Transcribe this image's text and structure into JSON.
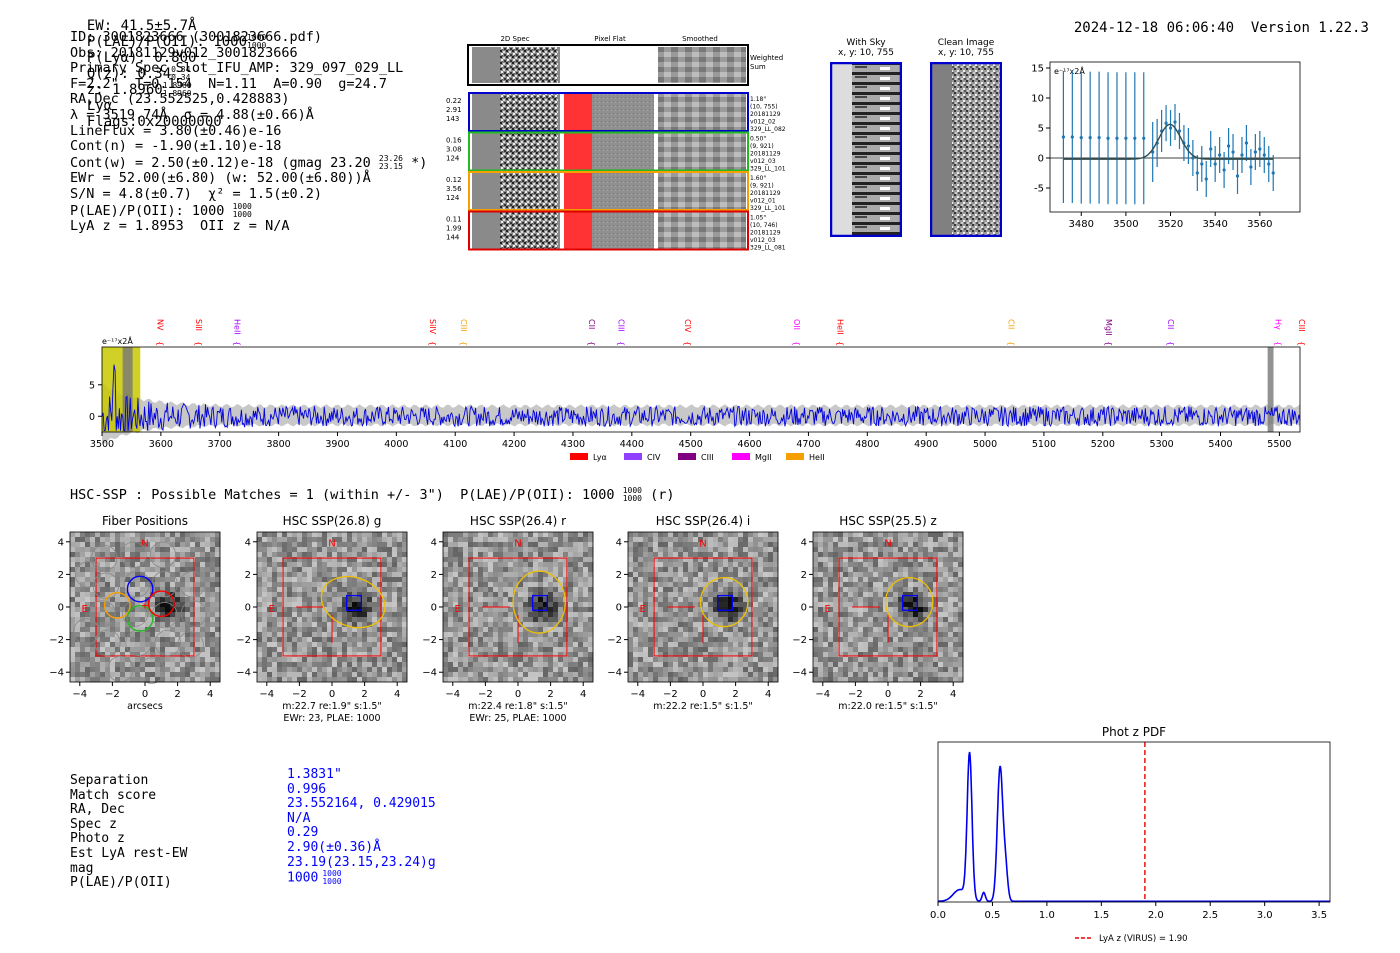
{
  "header": {
    "ew": "EW: 41.5±5.7Å",
    "plae": "P(LAE)/P(OII): 1000",
    "plae_sup": "1000",
    "plae_sub": "1000",
    "plya": "P(Lyα): 0.800",
    "qz": "Q(z): 0.34",
    "qz_sup": "0.34",
    "qz_sub": "0.34",
    "z": "z: 1.8960",
    "z_sup": "1.8960",
    "z_sub": "1.8960",
    "z_line": "Lyα",
    "flags": "Flags:0x20000000",
    "datetime": "2024-12-18 06:06:40",
    "version": "Version 1.22.3"
  },
  "info": {
    "id": "ID: 3001823666 (3001823666.pdf)",
    "obs": "Obs: 20181129v012_3001823666",
    "primary": "Primary Spec_Slot_IFU_AMP: 329_097_029_LL",
    "fiber": "F=2.2\"  T=0.154  N=1.11  A=0.90  g=24.7",
    "radec": "RA,Dec (23.552525,0.428883)",
    "lambda": "λ = 3519.74Å  σ = 4.88(±0.66)Å",
    "lineflux": "LineFlux = 3.80(±0.46)e-16",
    "contn": "Cont(n) = -1.90(±1.10)e-18",
    "contw": "Cont(w) = 2.50(±0.12)e-18 (gmag 23.20",
    "contw_sup": "23.26",
    "contw_sub": "23.15",
    "contw_end": "*)",
    "ewr": "EWr = 52.00(±6.80) (w: 52.00(±6.80))Å",
    "sn": "S/N = 4.8(±0.7)  χ² = 1.5(±0.2)",
    "plae": "P(LAE)/P(OII): 1000",
    "plae_sup": "1000",
    "plae_sub": "1000",
    "lyaz": "LyA z = 1.8953  OII z = N/A"
  },
  "cutouts": {
    "col_headers": [
      "2D Spec",
      "Pixel Flat",
      "Smoothed"
    ],
    "weighted_sum": "Weighted Sum",
    "rows": [
      {
        "vals": [
          "0.22",
          "2.91",
          "143"
        ],
        "meta": [
          "1.18\"",
          "(10, 755)",
          "20181129",
          "v012_02",
          "329_LL_082"
        ],
        "color": "#0000cc"
      },
      {
        "vals": [
          "0.16",
          "3.08",
          "124"
        ],
        "meta": [
          "0.50\"",
          "(9, 921)",
          "20181129",
          "v012_03",
          "329_LL_101"
        ],
        "color": "#22bb22"
      },
      {
        "vals": [
          "0.12",
          "3.56",
          "124"
        ],
        "meta": [
          "1.60\"",
          "(9, 921)",
          "20181129",
          "v012_01",
          "329_LL_101"
        ],
        "color": "#f5a000"
      },
      {
        "vals": [
          "0.11",
          "1.99",
          "144"
        ],
        "meta": [
          "1.05\"",
          "(10, 746)",
          "20181129",
          "v012_03",
          "329_LL_081"
        ],
        "color": "#dd0000"
      }
    ]
  },
  "sky_panels": [
    {
      "title": "With Sky",
      "coords": "x, y: 10, 755"
    },
    {
      "title": "Clean Image",
      "coords": "x, y: 10, 755"
    }
  ],
  "hsc": {
    "header": "HSC-SSP : Possible Matches = 1 (within +/- 3\")  P(LAE)/P(OII): 1000",
    "header_sup": "1000",
    "header_sub": "1000",
    "header_end": "(r)",
    "panels": [
      {
        "title": "Fiber Positions",
        "caption1": "arcsecs",
        "caption2": ""
      },
      {
        "title": "HSC SSP(26.8) g",
        "caption1": "m:22.7  re:1.9\"  s:1.5\"",
        "caption2": "EWr: 23, PLAE: 1000"
      },
      {
        "title": "HSC SSP(26.4) r",
        "caption1": "m:22.4  re:1.8\"  s:1.5\"",
        "caption2": "EWr: 25, PLAE: 1000"
      },
      {
        "title": "HSC SSP(26.4) i",
        "caption1": "m:22.2  re:1.5\"  s:1.5\"",
        "caption2": ""
      },
      {
        "title": "HSC SSP(25.5) z",
        "caption1": "m:22.0  re:1.5\"  s:1.5\"",
        "caption2": ""
      }
    ],
    "compass_n": "N",
    "compass_e": "E",
    "ticks": [
      "−4",
      "−2",
      "0",
      "2",
      "4"
    ],
    "ytick_labels": [
      "4",
      "2",
      "0",
      "−2",
      "−4"
    ]
  },
  "match": {
    "labels": [
      "Separation",
      "Match score",
      "RA, Dec",
      "Spec z",
      "Photo z",
      "Est LyA rest-EW",
      "mag",
      "P(LAE)/P(OII)"
    ],
    "values": [
      "1.3831\"",
      "0.996",
      "23.552164, 0.429015",
      "N/A",
      "0.29",
      "2.90(±0.36)Å",
      "23.19(23.15,23.24)g",
      "1000"
    ],
    "plae_sup": "1000",
    "plae_sub": "1000"
  },
  "chart_data": [
    {
      "name": "line-fit",
      "type": "scatter",
      "ylabel": "e⁻¹⁷x2Å",
      "xlim": [
        3466,
        3578
      ],
      "ylim": [
        -9,
        16
      ],
      "xticks": [
        3480,
        3500,
        3520,
        3540,
        3560
      ],
      "yticks": [
        15,
        10,
        5,
        0,
        -5
      ],
      "x": [
        3472,
        3476,
        3480,
        3484,
        3488,
        3492,
        3496,
        3500,
        3504,
        3508,
        3512,
        3514,
        3516,
        3518,
        3520,
        3522,
        3524,
        3526,
        3528,
        3530,
        3532,
        3534,
        3536,
        3538,
        3540,
        3542,
        3544,
        3546,
        3548,
        3550,
        3552,
        3554,
        3556,
        3558,
        3560,
        3562,
        3564,
        3566
      ],
      "y": [
        3.5,
        3.5,
        3.4,
        3.4,
        3.4,
        3.3,
        3.3,
        3.3,
        3.3,
        3.3,
        1.0,
        2.5,
        4.5,
        5.8,
        5.0,
        6.0,
        4.5,
        2.5,
        2.0,
        0.0,
        -2.5,
        -1.0,
        -3.5,
        1.5,
        -1.0,
        0.5,
        -2.0,
        2.0,
        1.0,
        -3.0,
        0.5,
        2.5,
        -1.5,
        1.0,
        1.5,
        0.5,
        -1.0,
        -2.5
      ],
      "yerr": [
        11,
        11,
        11,
        11,
        11,
        11,
        11,
        11,
        11,
        11,
        5,
        4,
        3.5,
        3,
        3,
        3,
        3,
        3,
        3,
        3,
        3,
        3,
        3,
        3,
        3,
        3,
        3,
        3,
        3,
        3,
        3,
        3,
        3,
        3,
        3,
        3,
        3,
        3
      ],
      "fit": {
        "center": 3519.74,
        "sigma": 4.88,
        "amp": 5.8,
        "cont": -0.2,
        "start": 3472,
        "end": 3566
      }
    },
    {
      "name": "full-spectrum",
      "type": "line",
      "ylabel": "e⁻¹⁷x2Å",
      "xlim": [
        3500,
        5535
      ],
      "ylim": [
        -2.5,
        11
      ],
      "xticks": [
        3500,
        3600,
        3700,
        3800,
        3900,
        4000,
        4100,
        4200,
        4300,
        4400,
        4500,
        4600,
        4700,
        4800,
        4900,
        5000,
        5100,
        5200,
        5300,
        5400,
        5500
      ],
      "yticks": [
        5,
        0
      ],
      "lines": [
        {
          "label": "NV",
          "x": 3589,
          "color": "#ff0000"
        },
        {
          "label": "SiII",
          "x": 3655,
          "color": "#ff0000"
        },
        {
          "label": "HeII",
          "x": 3720,
          "color": "#a000ff"
        },
        {
          "label": "SiIV",
          "x": 4052,
          "color": "#ff0000"
        },
        {
          "label": "CIII",
          "x": 4105,
          "color": "#f5a000"
        },
        {
          "label": "CII",
          "x": 4322,
          "color": "#800080"
        },
        {
          "label": "CIII",
          "x": 4372,
          "color": "#a000ff"
        },
        {
          "label": "CIV",
          "x": 4485,
          "color": "#ff0000"
        },
        {
          "label": "OII",
          "x": 4670,
          "color": "#ff00ff"
        },
        {
          "label": "HeII",
          "x": 4744,
          "color": "#ff0000"
        },
        {
          "label": "CII",
          "x": 5035,
          "color": "#f5a000"
        },
        {
          "label": "MgII",
          "x": 5200,
          "color": "#800080"
        },
        {
          "label": "CII",
          "x": 5306,
          "color": "#a000ff"
        },
        {
          "label": "Hγ",
          "x": 5488,
          "color": "#ff00ff"
        },
        {
          "label": "CIII",
          "x": 5558,
          "color": "#ff0000"
        }
      ],
      "legend": [
        {
          "label": "Lyα",
          "color": "#ff0000"
        },
        {
          "label": "CIV",
          "color": "#9040ff"
        },
        {
          "label": "CIII",
          "color": "#800080"
        },
        {
          "label": "MgII",
          "color": "#ff00ff"
        },
        {
          "label": "HeII",
          "color": "#f5a000"
        }
      ]
    },
    {
      "name": "photz-pdf",
      "type": "line",
      "title": "Phot z PDF",
      "xlim": [
        0,
        3.6
      ],
      "ylim": [
        0,
        1.1
      ],
      "xticks": [
        0.0,
        0.5,
        1.0,
        1.5,
        2.0,
        2.5,
        3.0,
        3.5
      ],
      "peaks": [
        {
          "center": 0.29,
          "width": 0.022,
          "height": 1.0
        },
        {
          "center": 0.57,
          "width": 0.025,
          "height": 0.92
        },
        {
          "center": 0.2,
          "width": 0.06,
          "height": 0.08
        },
        {
          "center": 0.42,
          "width": 0.015,
          "height": 0.06
        },
        {
          "center": 0.62,
          "width": 0.02,
          "height": 0.22
        }
      ],
      "baseline": 0.005,
      "vline": 1.9,
      "legend": "LyA z (VIRUS) = 1.90"
    }
  ]
}
